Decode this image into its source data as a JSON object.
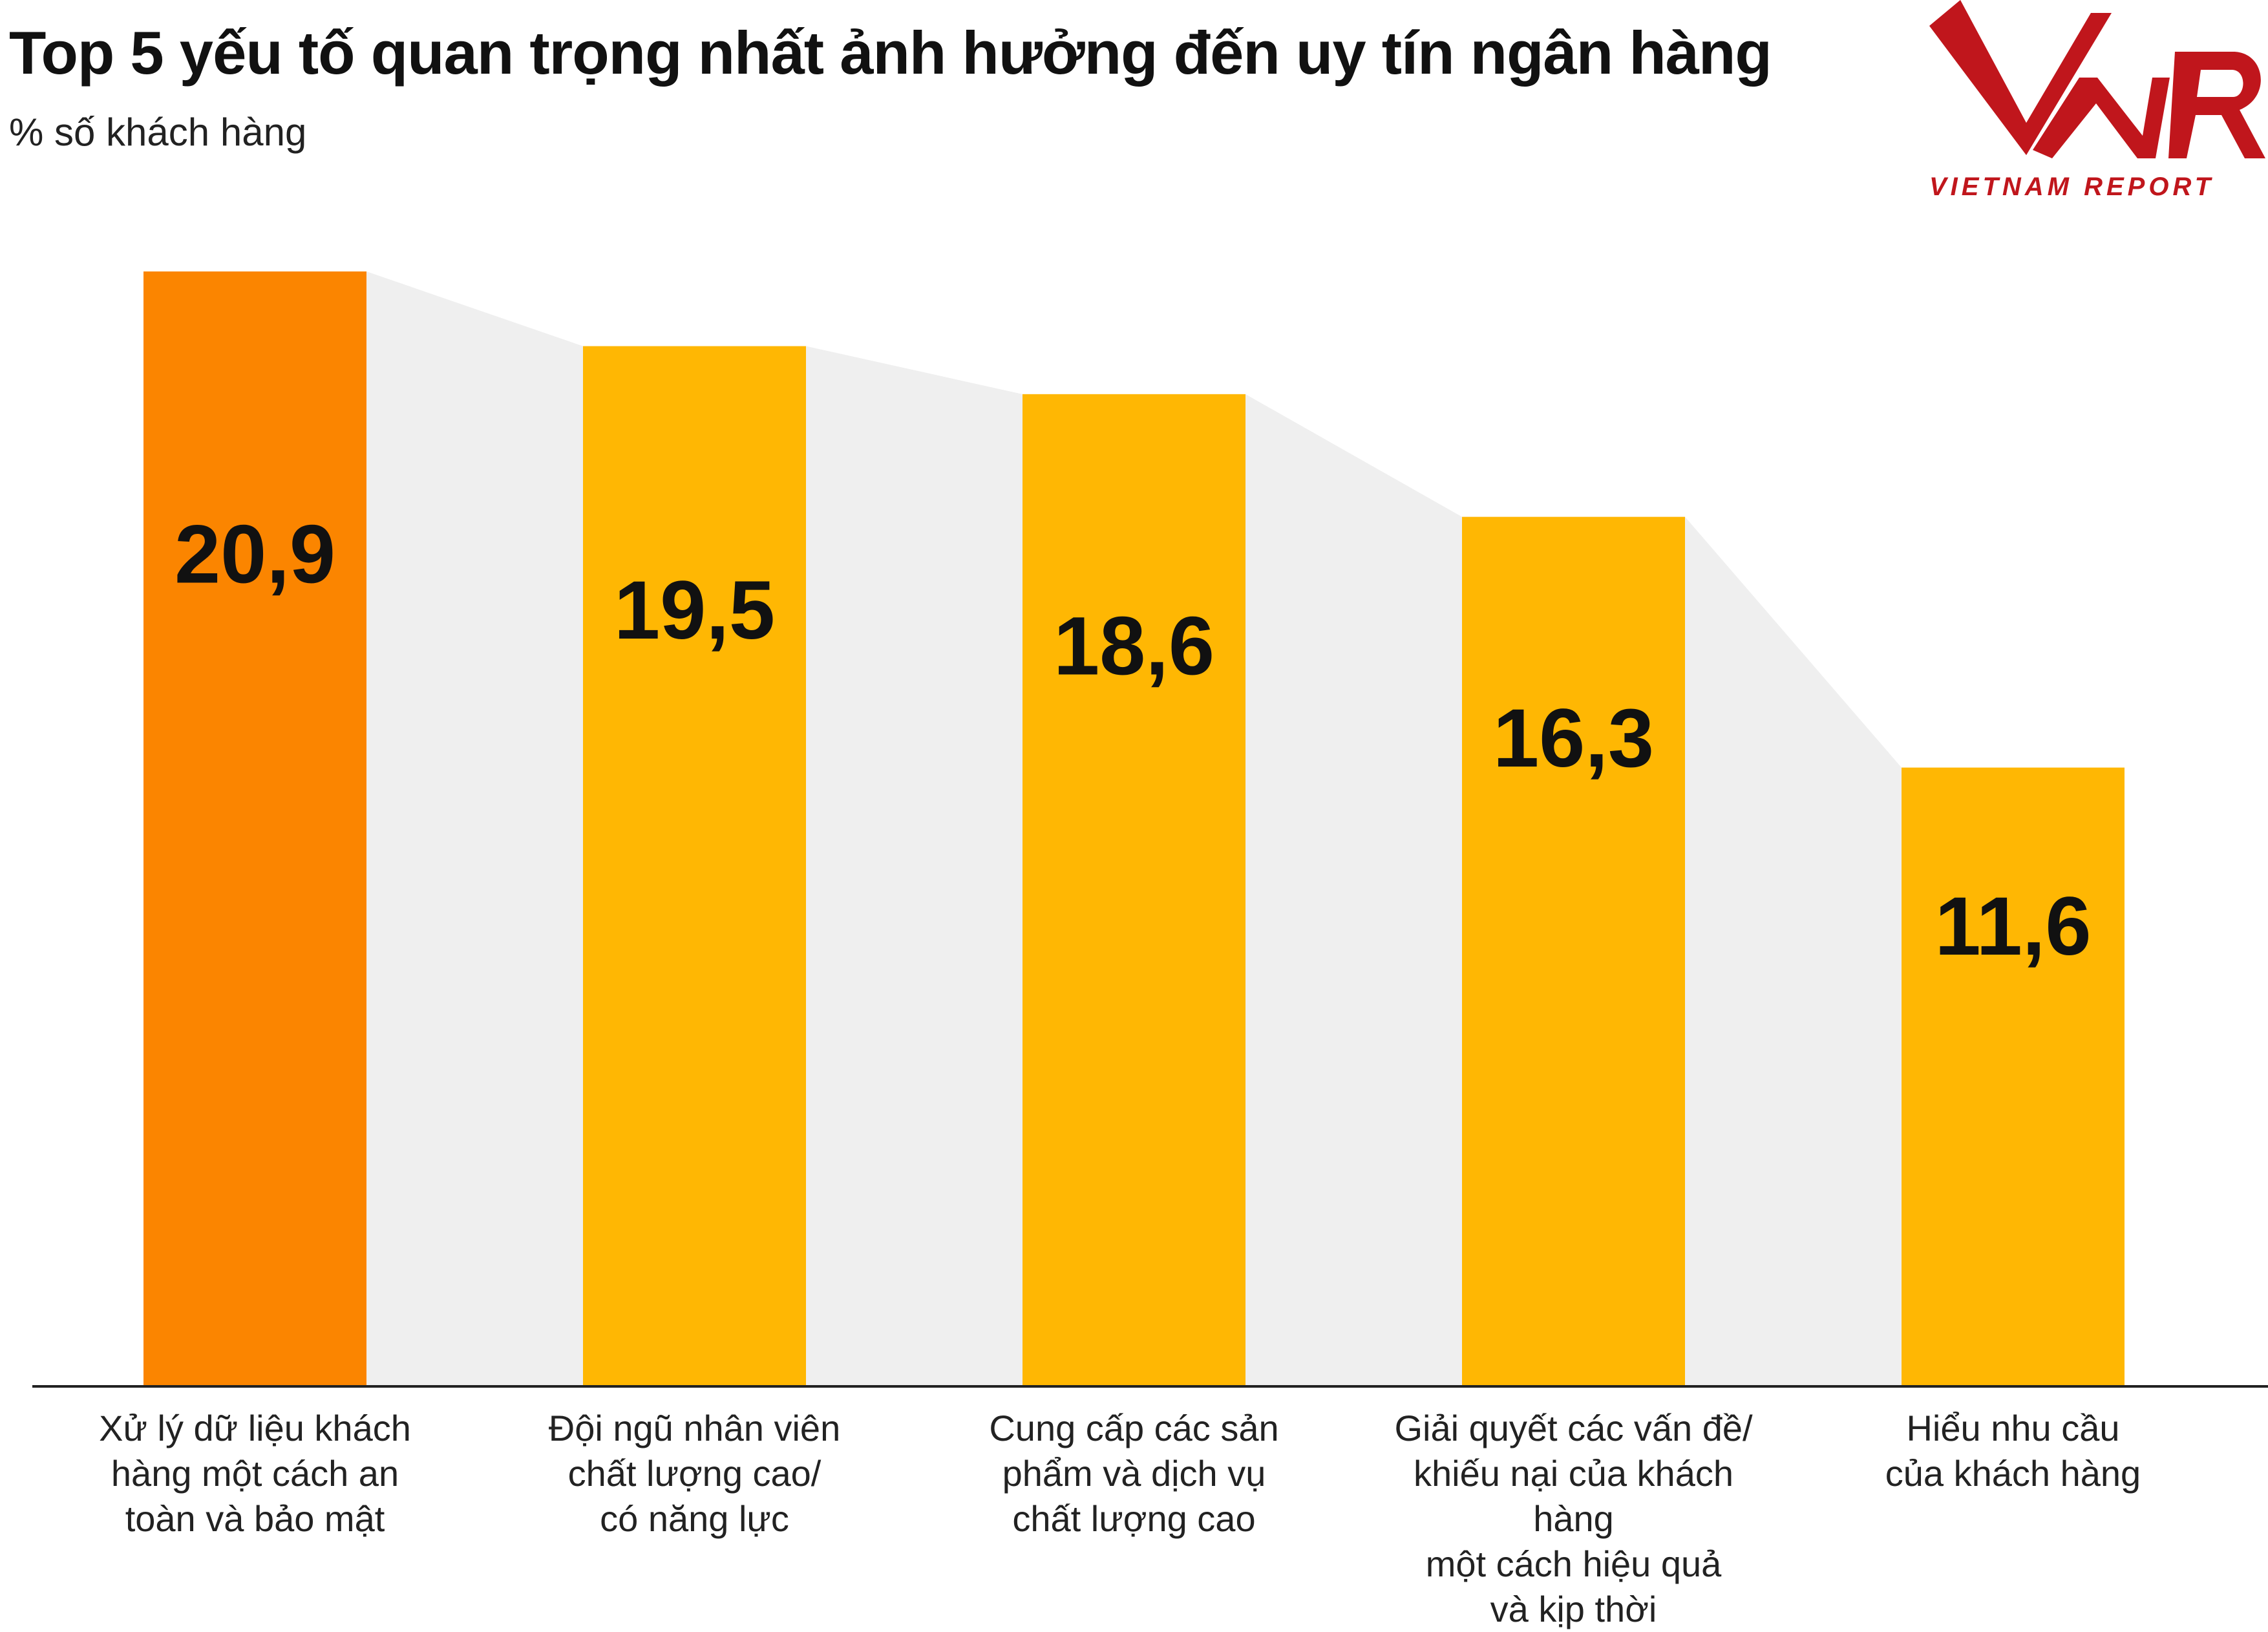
{
  "title": "Top 5 yếu tố quan trọng nhất ảnh hưởng đến uy tín ngân hàng",
  "subtitle": "% số khách hàng",
  "logo": {
    "text": "VIETNAM REPORT",
    "mark": "VNR",
    "color": "#c0161c"
  },
  "colors": {
    "highlight": "#fb8500",
    "bar": "#ffb703",
    "band": "#efefef",
    "axis": "#222222"
  },
  "chart_data": {
    "type": "bar",
    "categories": [
      "Xử lý dữ liệu khách hàng một cách an toàn và bảo mật",
      "Đội ngũ nhân viên chất lượng cao/ có năng lực",
      "Cung cấp các sản phẩm và dịch vụ chất lượng cao",
      "Giải quyết các vấn đề/ khiếu nại của khách hàng một cách hiệu quả và kịp thời",
      "Hiểu nhu cầu của khách hàng"
    ],
    "category_lines": [
      [
        "Xử lý dữ liệu khách",
        "hàng một cách an",
        "toàn và bảo mật"
      ],
      [
        "Đội ngũ nhân viên",
        "chất lượng cao/",
        "có năng lực"
      ],
      [
        "Cung cấp các sản",
        "phẩm và dịch vụ",
        "chất lượng cao"
      ],
      [
        "Giải quyết các vấn đề/",
        "khiếu nại của khách hàng",
        "một cách hiệu quả",
        "và kịp thời"
      ],
      [
        "Hiểu nhu cầu",
        "của khách hàng"
      ]
    ],
    "values": [
      20.9,
      19.5,
      18.6,
      16.3,
      11.6
    ],
    "value_labels": [
      "20,9",
      "19,5",
      "18,6",
      "16,3",
      "11,6"
    ],
    "highlight_index": 0,
    "ylim": [
      0,
      20.9
    ],
    "grid": false,
    "xlabel": "",
    "ylabel": ""
  }
}
